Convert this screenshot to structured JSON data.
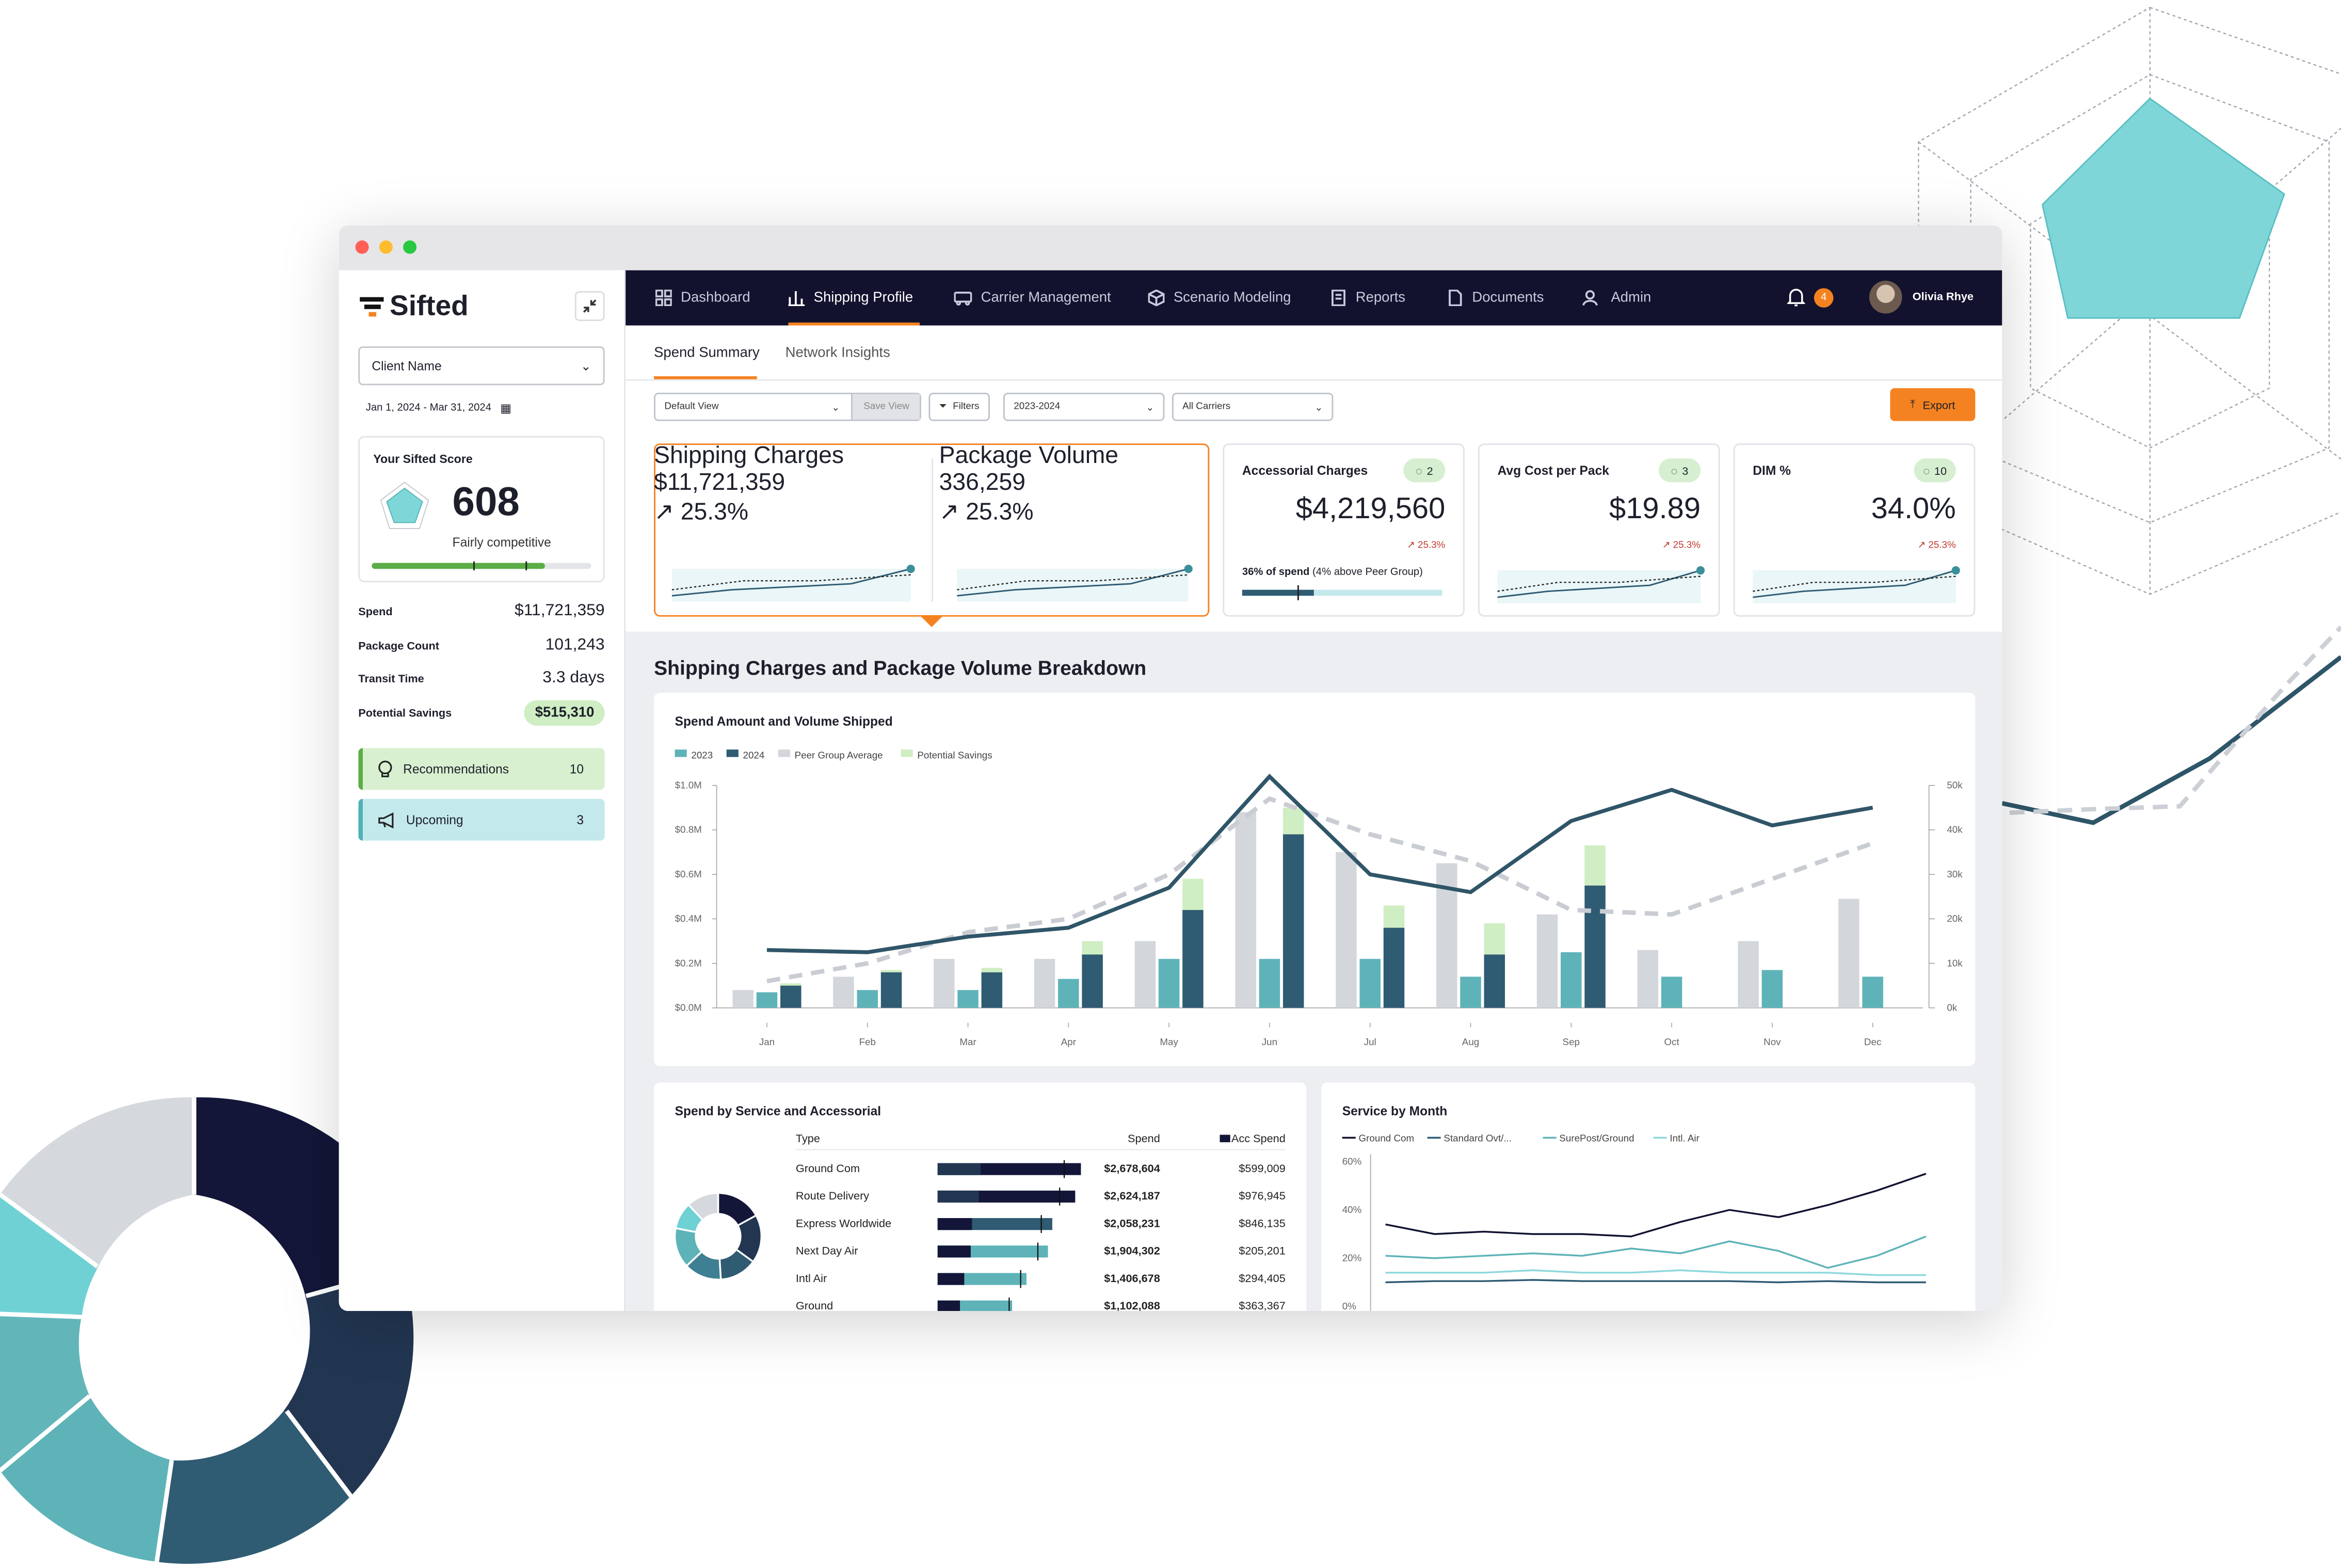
{
  "app": {
    "logo": "Sifted",
    "client_name": "Client Name",
    "date_range": "Jan 1, 2024 - Mar 31, 2024"
  },
  "nav": {
    "items": [
      {
        "label": "Dashboard",
        "icon": "grid-icon",
        "active": false
      },
      {
        "label": "Shipping Profile",
        "icon": "bar-chart-icon",
        "active": true
      },
      {
        "label": "Carrier Management",
        "icon": "truck-icon",
        "active": false
      },
      {
        "label": "Scenario Modeling",
        "icon": "cube-icon",
        "active": false
      },
      {
        "label": "Reports",
        "icon": "report-icon",
        "active": false
      },
      {
        "label": "Documents",
        "icon": "document-icon",
        "active": false
      },
      {
        "label": "Admin",
        "icon": "users-icon",
        "active": false
      }
    ],
    "notification_count": "4",
    "user_name": "Olivia Rhye"
  },
  "subtabs": [
    "Spend Summary",
    "Network Insights"
  ],
  "filters": {
    "view": "Default View",
    "save_view": "Save View",
    "filters": "Filters",
    "year": "2023-2024",
    "carrier": "All Carriers",
    "export": "Export"
  },
  "score": {
    "title": "Your Sifted Score",
    "value": "608",
    "label": "Fairly competitive",
    "progress": 0.79
  },
  "stats": [
    {
      "label": "Spend",
      "value": "$11,721,359"
    },
    {
      "label": "Package Count",
      "value": "101,243"
    },
    {
      "label": "Transit Time",
      "value": "3.3 days"
    },
    {
      "label": "Potential Savings",
      "value": "$515,310"
    }
  ],
  "side_buttons": [
    {
      "label": "Recommendations",
      "count": "10"
    },
    {
      "label": "Upcoming",
      "count": "3"
    }
  ],
  "kpis": [
    {
      "title": "Shipping Charges",
      "value": "$11,721,359",
      "delta": "25.3%"
    },
    {
      "title": "Package Volume",
      "value": "336,259",
      "delta": "25.3%"
    },
    {
      "title": "Accessorial Charges",
      "value": "$4,219,560",
      "delta": "25.3%",
      "badge": "2",
      "note_bold": "36% of spend",
      "note": "(4% above Peer Group)",
      "progress": 0.36
    },
    {
      "title": "Avg Cost per Pack",
      "value": "$19.89",
      "delta": "25.3%",
      "badge": "3"
    },
    {
      "title": "DIM %",
      "value": "34.0%",
      "delta": "25.3%",
      "badge": "10"
    }
  ],
  "section_title": "Shipping Charges and Package Volume Breakdown",
  "chart_data": [
    {
      "type": "bar",
      "title": "Spend Amount and Volume Shipped",
      "categories": [
        "Jan",
        "Feb",
        "Mar",
        "Apr",
        "May",
        "Jun",
        "Jul",
        "Aug",
        "Sep",
        "Oct",
        "Nov",
        "Dec"
      ],
      "y_ticks": [
        "$0.0M",
        "$0.2M",
        "$0.4M",
        "$0.6M",
        "$0.8M",
        "$1.0M"
      ],
      "y2_ticks": [
        "0k",
        "10k",
        "20k",
        "30k",
        "40k",
        "50k"
      ],
      "ylim": [
        0,
        1.0
      ],
      "y2lim": [
        0,
        50
      ],
      "series": [
        {
          "name": "Peer Group Average",
          "color": "#d3d6db",
          "values": [
            0.08,
            0.14,
            0.22,
            0.22,
            0.3,
            0.88,
            0.7,
            0.65,
            0.42,
            0.26,
            0.3,
            0.49
          ]
        },
        {
          "name": "2023",
          "color": "#5eb3b8",
          "values": [
            0.07,
            0.08,
            0.08,
            0.13,
            0.22,
            0.22,
            0.22,
            0.14,
            0.25,
            0.14,
            0.17,
            0.14
          ]
        },
        {
          "name": "2024",
          "color": "#2f5b73",
          "values": [
            0.1,
            0.16,
            0.16,
            0.24,
            0.44,
            0.78,
            0.36,
            0.24,
            0.55,
            null,
            null,
            null
          ]
        },
        {
          "name": "Potential Savings",
          "color": "#cfeec3",
          "values": [
            0.01,
            0.01,
            0.02,
            0.06,
            0.14,
            0.12,
            0.1,
            0.14,
            0.18,
            null,
            null,
            null
          ]
        }
      ],
      "lines": [
        {
          "name": "Volume",
          "values": [
            13,
            12.5,
            16,
            18,
            27,
            52,
            30,
            26,
            42,
            49,
            41,
            45
          ]
        },
        {
          "name": "Peer Volume",
          "values": [
            6,
            10,
            17,
            20,
            30,
            47,
            39,
            33,
            22,
            21,
            29,
            37
          ]
        }
      ]
    },
    {
      "type": "line",
      "title": "Service by Month",
      "y_ticks": [
        "0%",
        "20%",
        "40%",
        "60%"
      ],
      "ylim": [
        0,
        60
      ],
      "series": [
        {
          "name": "Ground Com",
          "color": "#111230",
          "values": [
            34,
            30,
            31,
            30,
            30,
            29,
            35,
            40,
            37,
            42,
            48,
            55
          ]
        },
        {
          "name": "Standard Ovt/...",
          "color": "#2f5b73",
          "values": [
            10,
            10.5,
            10.5,
            11,
            10.5,
            10.5,
            10.5,
            10.5,
            10,
            10.5,
            10,
            10
          ]
        },
        {
          "name": "SurePost/Ground",
          "color": "#5eb3b8",
          "values": [
            21,
            20,
            21,
            22,
            21,
            24,
            22,
            27,
            23,
            16,
            21,
            29
          ]
        },
        {
          "name": "Intl. Air",
          "color": "#8fd8dd",
          "values": [
            14,
            14,
            14,
            15,
            14,
            14,
            15,
            14,
            14,
            14,
            13,
            13
          ]
        }
      ]
    },
    {
      "type": "table",
      "title": "Spend by Service and Accessorial",
      "headers": {
        "type": "Type",
        "spend": "Spend",
        "acc": "Acc Spend"
      },
      "rows": [
        {
          "type": "Ground Com",
          "spend": "$2,678,604",
          "acc": "$599,009",
          "bar": 1.0
        },
        {
          "type": "Route Delivery",
          "spend": "$2,624,187",
          "acc": "$976,945",
          "bar": 0.96
        },
        {
          "type": "Express Worldwide",
          "spend": "$2,058,231",
          "acc": "$846,135",
          "bar": 0.8
        },
        {
          "type": "Next Day Air",
          "spend": "$1,904,302",
          "acc": "$205,201",
          "bar": 0.77
        },
        {
          "type": "Intl Air",
          "spend": "$1,406,678",
          "acc": "$294,405",
          "bar": 0.62
        },
        {
          "type": "Ground",
          "spend": "$1,102,088",
          "acc": "$363,367",
          "bar": 0.52
        }
      ]
    }
  ]
}
